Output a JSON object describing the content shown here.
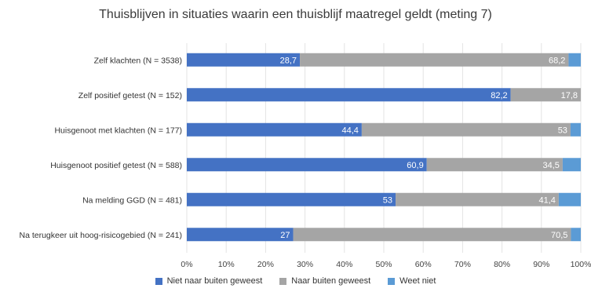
{
  "chart_data": {
    "type": "bar",
    "orientation": "horizontal",
    "stacked": true,
    "title": "Thuisblijven in situaties waarin een thuisblijf maatregel geldt (meting 7)",
    "categories": [
      "Zelf klachten (N = 3538)",
      "Zelf positief getest (N = 152)",
      "Huisgenoot met klachten (N = 177)",
      "Huisgenoot positief getest (N = 588)",
      "Na melding GGD (N = 481)",
      "Na terugkeer uit hoog-risicogebied (N = 241)"
    ],
    "series": [
      {
        "name": "Niet naar buiten geweest",
        "color": "#4472C4",
        "values": [
          28.7,
          82.2,
          44.4,
          60.9,
          53,
          27
        ],
        "labels": [
          "28,7",
          "82,2",
          "44,4",
          "60,9",
          "53",
          "27"
        ]
      },
      {
        "name": "Naar buiten geweest",
        "color": "#A5A5A5",
        "values": [
          68.2,
          17.8,
          53,
          34.5,
          41.4,
          70.5
        ],
        "labels": [
          "68,2",
          "17,8",
          "53",
          "34,5",
          "41,4",
          "70,5"
        ]
      },
      {
        "name": "Weet niet",
        "color": "#5B9BD5",
        "values": [
          3.1,
          0,
          2.6,
          4.6,
          5.6,
          2.5
        ],
        "labels": [
          "",
          "",
          "",
          "",
          "",
          ""
        ]
      }
    ],
    "xlim": [
      0,
      100
    ],
    "xticks": [
      "0%",
      "10%",
      "20%",
      "30%",
      "40%",
      "50%",
      "60%",
      "70%",
      "80%",
      "90%",
      "100%"
    ],
    "grid": true,
    "legend_position": "bottom"
  }
}
